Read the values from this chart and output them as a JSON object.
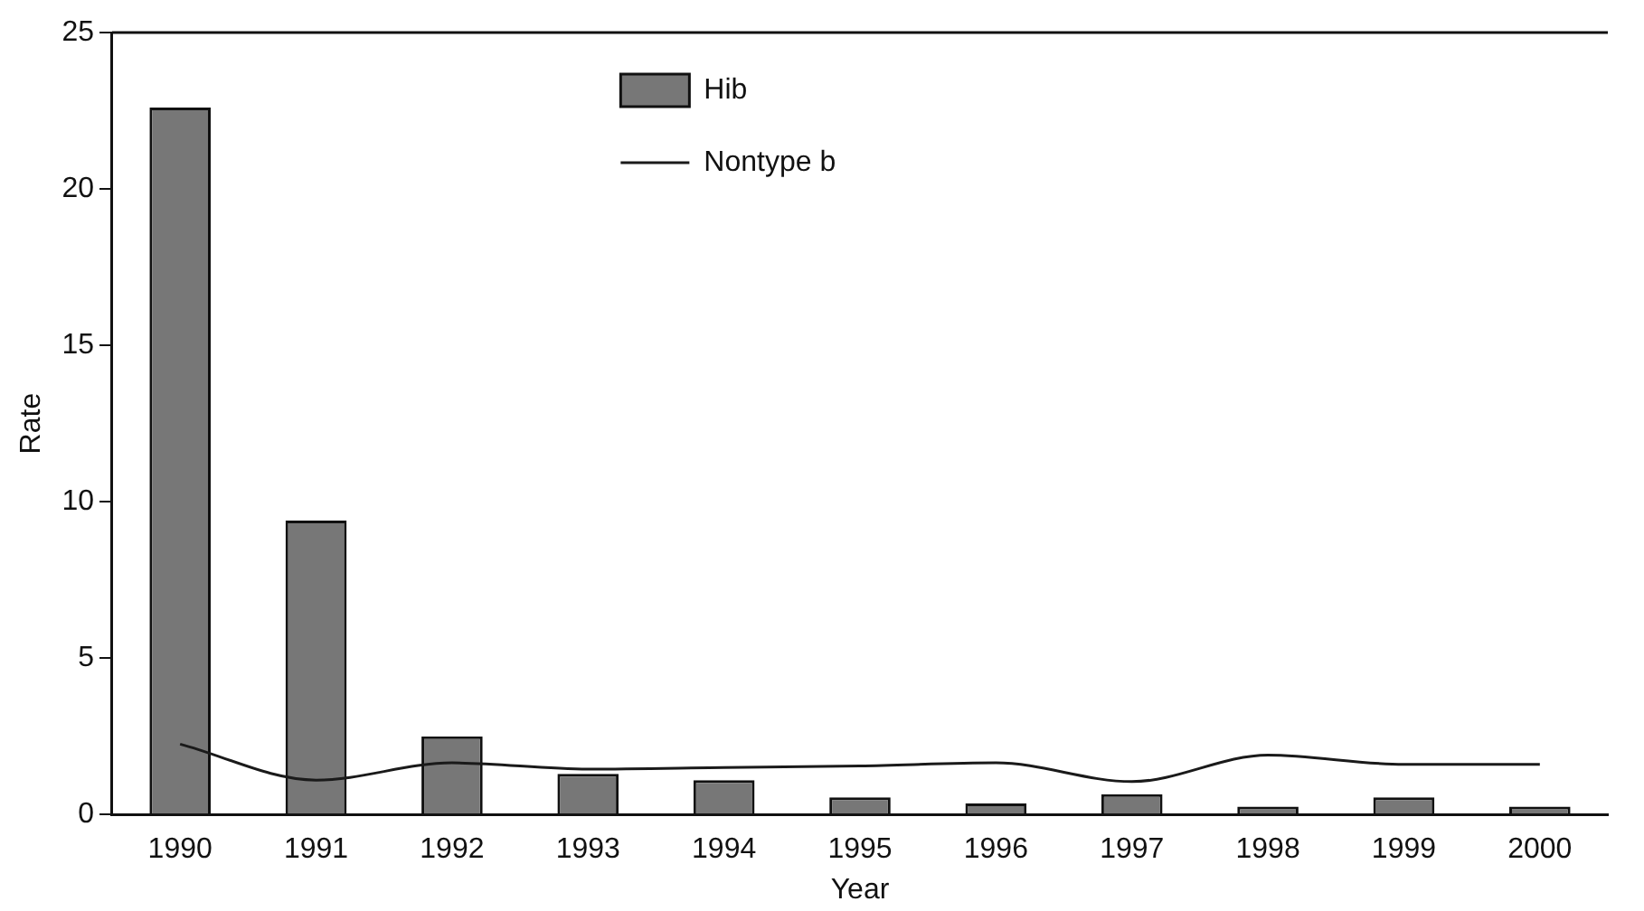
{
  "chart_data": {
    "type": "bar",
    "xlabel": "Year",
    "ylabel": "Rate",
    "categories": [
      "1990",
      "1991",
      "1992",
      "1993",
      "1994",
      "1995",
      "1996",
      "1997",
      "1998",
      "1999",
      "2000"
    ],
    "series": [
      {
        "name": "Hib",
        "color": "#777777",
        "values": [
          22.6,
          9.4,
          2.5,
          1.3,
          1.1,
          0.55,
          0.35,
          0.65,
          0.25,
          0.55,
          0.25
        ]
      },
      {
        "name": "Nontype b",
        "type": "line",
        "color": "#1a1a1a",
        "values": [
          2.25,
          1.1,
          1.65,
          1.45,
          1.5,
          1.55,
          1.65,
          1.05,
          1.9,
          1.6,
          1.6
        ]
      }
    ],
    "ylim": [
      0,
      25
    ],
    "yticks": [
      0,
      5,
      10,
      15,
      20,
      25
    ],
    "grid": false,
    "legend": "top",
    "marker": "none",
    "line_style": "solid"
  }
}
